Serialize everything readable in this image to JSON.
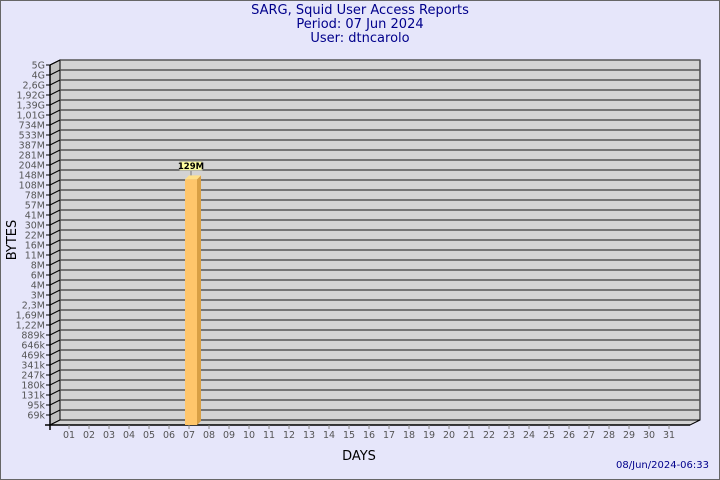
{
  "chart_data": {
    "type": "bar",
    "title": "SARG, Squid User Access Reports",
    "subtitle_lines": [
      "Period: 07 Jun 2024",
      "User: dtncarolo"
    ],
    "xlabel": "DAYS",
    "ylabel": "BYTES",
    "y_scale": "log",
    "y_ticks": [
      "5G",
      "4G",
      "2,6G",
      "1,92G",
      "1,39G",
      "1,01G",
      "734M",
      "533M",
      "387M",
      "281M",
      "204M",
      "148M",
      "108M",
      "78M",
      "57M",
      "41M",
      "30M",
      "22M",
      "16M",
      "11M",
      "8M",
      "6M",
      "4M",
      "3M",
      "2,3M",
      "1,69M",
      "1,22M",
      "889k",
      "646k",
      "469k",
      "341k",
      "247k",
      "180k",
      "131k",
      "95k",
      "69k"
    ],
    "categories": [
      "01",
      "02",
      "03",
      "04",
      "05",
      "06",
      "07",
      "08",
      "09",
      "10",
      "11",
      "12",
      "13",
      "14",
      "15",
      "16",
      "17",
      "18",
      "19",
      "20",
      "21",
      "22",
      "23",
      "24",
      "25",
      "26",
      "27",
      "28",
      "29",
      "30",
      "31"
    ],
    "values": [
      null,
      null,
      null,
      null,
      null,
      null,
      129000000,
      null,
      null,
      null,
      null,
      null,
      null,
      null,
      null,
      null,
      null,
      null,
      null,
      null,
      null,
      null,
      null,
      null,
      null,
      null,
      null,
      null,
      null,
      null,
      null
    ],
    "data_labels": {
      "07": "129M"
    },
    "grid": true,
    "colors": {
      "bar_front": "#ffc66b",
      "bar_side": "#d9a045",
      "bar_top": "#ffe08a",
      "wall": "#d3d3d3",
      "grid": "#555555",
      "label_bg": "#ffffa0"
    }
  },
  "footer": {
    "timestamp": "08/Jun/2024-06:33"
  }
}
